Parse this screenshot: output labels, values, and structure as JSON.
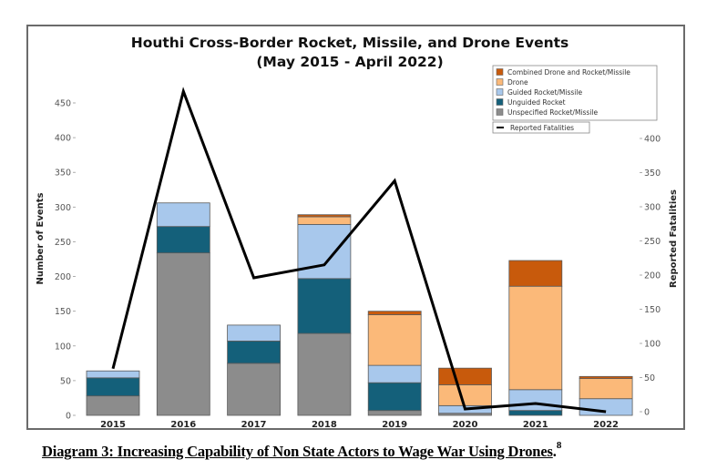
{
  "chart_data": {
    "type": "bar",
    "stacked": true,
    "title": "Houthi Cross-Border Rocket, Missile, and Drone Events",
    "subtitle": "(May 2015 - April 2022)",
    "xlabel": "",
    "ylabel": "Number of Events",
    "y2label": "Reported Fatalities",
    "categories": [
      "2015",
      "2016",
      "2017",
      "2018",
      "2019",
      "2020",
      "2021",
      "2022"
    ],
    "ylim": [
      0,
      450
    ],
    "yticks": [
      0,
      50,
      100,
      150,
      200,
      250,
      300,
      350,
      400,
      450
    ],
    "y2lim": [
      0,
      400
    ],
    "y2ticks": [
      0,
      50,
      100,
      150,
      200,
      250,
      300,
      350,
      400
    ],
    "grid": false,
    "legend_position": "top-right",
    "series": [
      {
        "name": "Unspecified Rocket/Missile",
        "color": "#8c8c8c",
        "values": [
          28,
          234,
          75,
          118,
          7,
          3,
          0,
          0
        ]
      },
      {
        "name": "Unguided Rocket",
        "color": "#14607a",
        "values": [
          26,
          38,
          32,
          79,
          40,
          0,
          7,
          0
        ]
      },
      {
        "name": "Guided Rocket/Missile",
        "color": "#a8c8ec",
        "values": [
          10,
          34,
          23,
          78,
          25,
          11,
          30,
          24
        ]
      },
      {
        "name": "Drone",
        "color": "#fbb979",
        "values": [
          0,
          0,
          0,
          11,
          73,
          30,
          149,
          29
        ]
      },
      {
        "name": "Combined Drone and Rocket/Missile",
        "color": "#c85a0c",
        "values": [
          0,
          0,
          0,
          3,
          5,
          24,
          37,
          3
        ]
      }
    ],
    "line_series": {
      "name": "Reported Fatalities",
      "color": "#000000",
      "axis": "right",
      "values": [
        63,
        469,
        196,
        215,
        338,
        4,
        12,
        0
      ]
    },
    "legend_order": [
      "Combined Drone and Rocket/Missile",
      "Drone",
      "Guided Rocket/Missile",
      "Unguided Rocket",
      "Unspecified Rocket/Missile"
    ]
  },
  "caption": {
    "text": "Diagram 3: Increasing Capability of Non State Actors to Wage War Using Drones",
    "period": ".",
    "footnote": "8"
  }
}
